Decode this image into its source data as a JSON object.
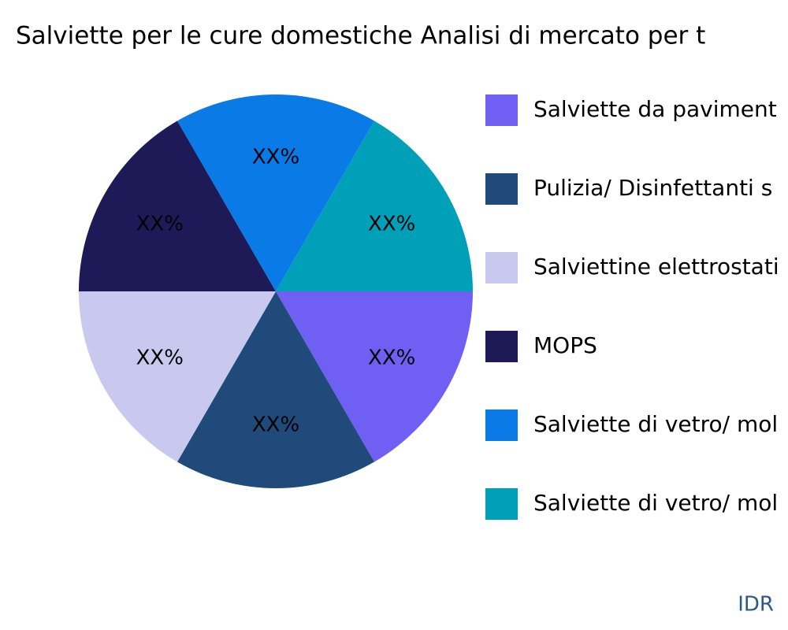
{
  "chart_data": {
    "type": "pie",
    "title": "Salviette per le cure domestiche Analisi di mercato per t",
    "categories": [
      "Salviette da paviment",
      "Pulizia/ Disinfettanti s",
      "Salviettine elettrostati",
      "MOPS",
      "Salviette di vetro/ mol",
      "Salviette di vetro/ mol"
    ],
    "values": [
      16.67,
      16.67,
      16.67,
      16.67,
      16.67,
      16.67
    ],
    "value_labels": [
      "XX%",
      "XX%",
      "XX%",
      "XX%",
      "XX%",
      "XX%"
    ],
    "colors": [
      "#6f5ff2",
      "#1f4a7a",
      "#c9c9f0",
      "#1e1957",
      "#0a7ae6",
      "#00a0b8"
    ],
    "legend": "right",
    "source": "IDR"
  }
}
